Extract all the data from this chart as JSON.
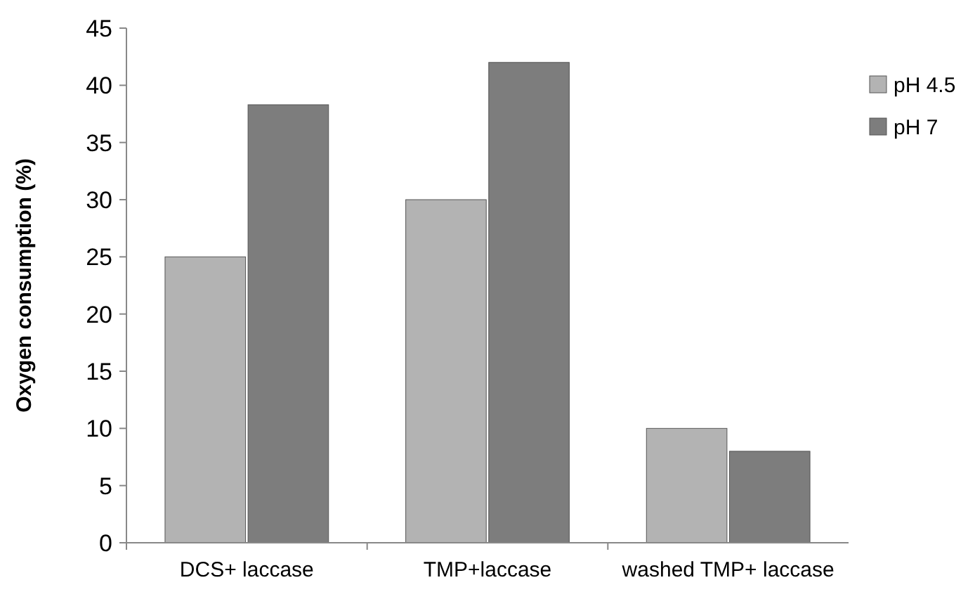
{
  "chart_data": {
    "type": "bar",
    "ylabel": "Oxygen consumption (%)",
    "categories": [
      "DCS+ laccase",
      "TMP+laccase",
      "washed TMP+ laccase"
    ],
    "series": [
      {
        "name": "pH 4.5",
        "color": "#b3b3b3",
        "values": [
          25,
          30,
          10
        ]
      },
      {
        "name": "pH 7",
        "color": "#7d7d7d",
        "values": [
          38.3,
          42,
          8
        ]
      }
    ],
    "ylim": [
      0,
      45
    ],
    "yticks": [
      0,
      5,
      10,
      15,
      20,
      25,
      30,
      35,
      40,
      45
    ],
    "grid": false,
    "legend": "top right"
  }
}
